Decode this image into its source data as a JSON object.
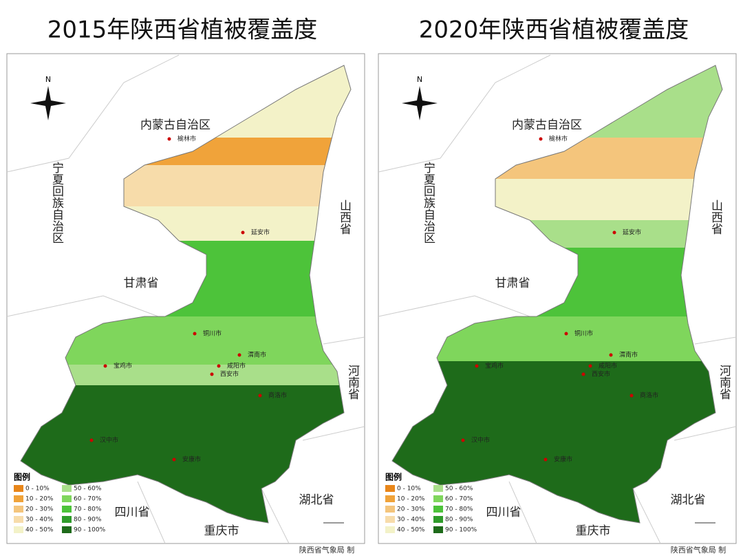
{
  "panels": [
    {
      "title": "2015年陕西省植被覆盖度",
      "regions": [
        "内蒙古自治区",
        "宁夏回族自治区",
        "甘肃省",
        "山西省",
        "河南省",
        "湖北省",
        "四川省",
        "重庆市"
      ],
      "cities": [
        "榆林市",
        "延安市",
        "铜川市",
        "宝鸡市",
        "咸阳市",
        "西安市",
        "渭南市",
        "汉中市",
        "安康市",
        "商洛市"
      ],
      "north": "N",
      "legend": {
        "title": "图例",
        "items": [
          {
            "label": "0 - 10%",
            "color": "#e8861a"
          },
          {
            "label": "10 - 20%",
            "color": "#f0a33a"
          },
          {
            "label": "20 - 30%",
            "color": "#f4c57c"
          },
          {
            "label": "30 - 40%",
            "color": "#f7dcaa"
          },
          {
            "label": "40 - 50%",
            "color": "#f3f2c8"
          },
          {
            "label": "50 - 60%",
            "color": "#a9df8a"
          },
          {
            "label": "60 - 70%",
            "color": "#7fd65c"
          },
          {
            "label": "70 - 80%",
            "color": "#4dc33a"
          },
          {
            "label": "80 - 90%",
            "color": "#2f9c2a"
          },
          {
            "label": "90 - 100%",
            "color": "#1e6b1a"
          }
        ]
      },
      "credit": "陕西省气象局 制"
    },
    {
      "title": "2020年陕西省植被覆盖度",
      "regions": [
        "内蒙古自治区",
        "宁夏回族自治区",
        "甘肃省",
        "山西省",
        "河南省",
        "湖北省",
        "四川省",
        "重庆市"
      ],
      "cities": [
        "榆林市",
        "延安市",
        "铜川市",
        "宝鸡市",
        "咸阳市",
        "西安市",
        "渭南市",
        "汉中市",
        "安康市",
        "商洛市"
      ],
      "north": "N",
      "legend": {
        "title": "图例",
        "items": [
          {
            "label": "0 - 10%",
            "color": "#e8861a"
          },
          {
            "label": "10 - 20%",
            "color": "#f0a33a"
          },
          {
            "label": "20 - 30%",
            "color": "#f4c57c"
          },
          {
            "label": "30 - 40%",
            "color": "#f7dcaa"
          },
          {
            "label": "40 - 50%",
            "color": "#f3f2c8"
          },
          {
            "label": "50 - 60%",
            "color": "#a9df8a"
          },
          {
            "label": "60 - 70%",
            "color": "#7fd65c"
          },
          {
            "label": "70 - 80%",
            "color": "#4dc33a"
          },
          {
            "label": "80 - 90%",
            "color": "#2f9c2a"
          },
          {
            "label": "90 - 100%",
            "color": "#1e6b1a"
          }
        ]
      },
      "credit": "陕西省气象局 制"
    }
  ]
}
